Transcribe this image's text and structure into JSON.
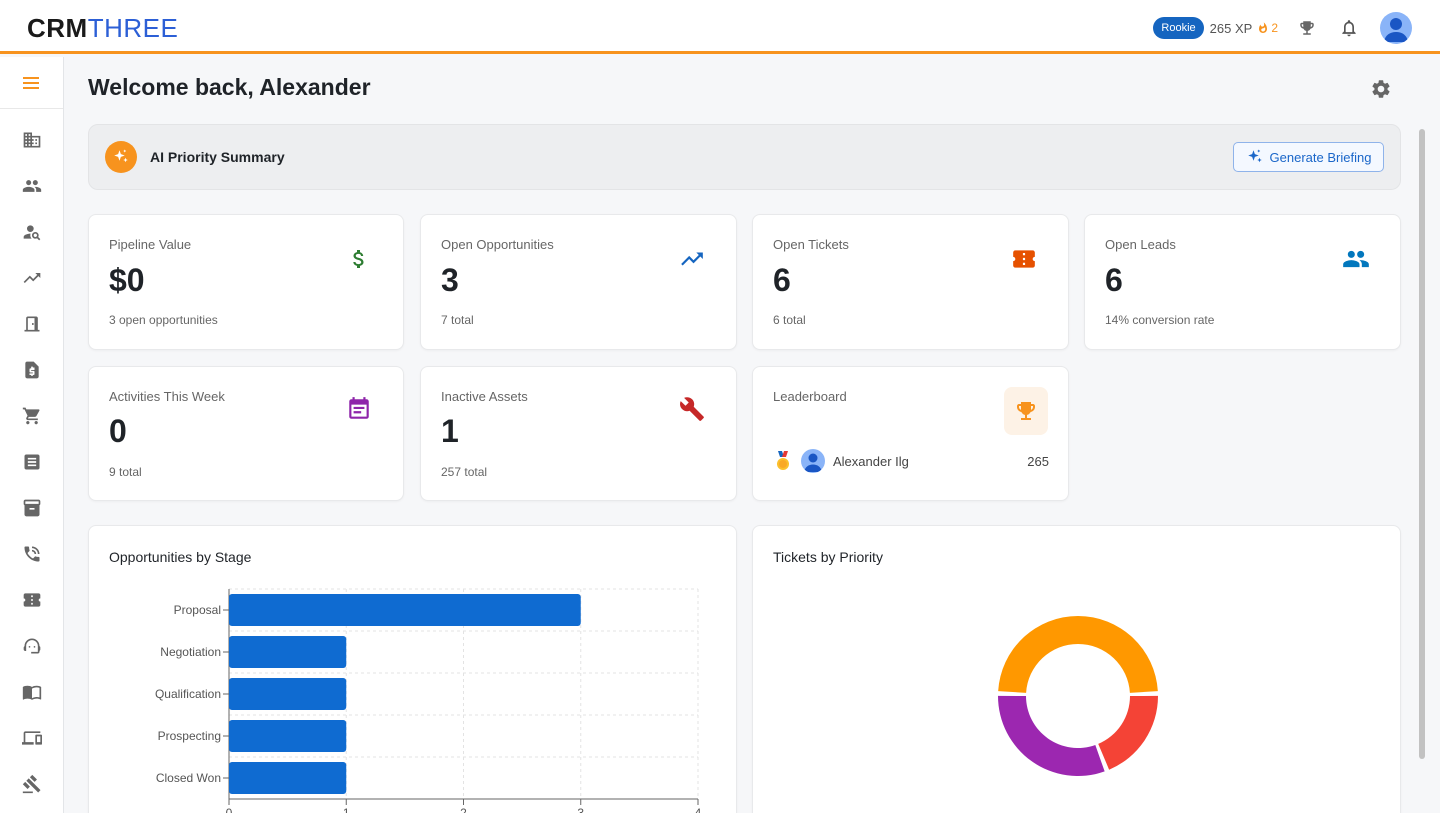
{
  "app": {
    "logo_primary": "CRM",
    "logo_secondary": "THREE",
    "rookie_badge": "Rookie",
    "xp": "265 XP",
    "streak": "2"
  },
  "sidebar": {
    "items": [
      {
        "icon": "building-icon"
      },
      {
        "icon": "people-icon"
      },
      {
        "icon": "person-search-icon"
      },
      {
        "icon": "trending-up-icon"
      },
      {
        "icon": "door-icon"
      },
      {
        "icon": "invoice-icon"
      },
      {
        "icon": "cart-icon"
      },
      {
        "icon": "list-icon"
      },
      {
        "icon": "archive-icon"
      },
      {
        "icon": "phone-icon"
      },
      {
        "icon": "ticket-icon"
      },
      {
        "icon": "support-agent-icon"
      },
      {
        "icon": "book-icon"
      },
      {
        "icon": "devices-icon"
      },
      {
        "icon": "gavel-icon"
      }
    ]
  },
  "main": {
    "welcome": "Welcome back, Alexander",
    "ai": {
      "title": "AI Priority Summary",
      "button": "Generate Briefing"
    },
    "stats": [
      {
        "label": "Pipeline Value",
        "value": "$0",
        "sub": "3 open opportunities",
        "icon": "dollar-icon",
        "color": "#2e7d32"
      },
      {
        "label": "Open Opportunities",
        "value": "3",
        "sub": "7 total",
        "icon": "trending-up-icon",
        "color": "#1565c0"
      },
      {
        "label": "Open Tickets",
        "value": "6",
        "sub": "6 total",
        "icon": "ticket-icon",
        "color": "#e65100"
      },
      {
        "label": "Open Leads",
        "value": "6",
        "sub": "14% conversion rate",
        "icon": "people-icon",
        "color": "#0277bd"
      },
      {
        "label": "Activities This Week",
        "value": "0",
        "sub": "9 total",
        "icon": "calendar-icon",
        "color": "#8e24aa"
      },
      {
        "label": "Inactive Assets",
        "value": "1",
        "sub": "257 total",
        "icon": "wrench-icon",
        "color": "#c62828"
      }
    ],
    "leaderboard": {
      "title": "Leaderboard",
      "entries": [
        {
          "name": "Alexander Ilg",
          "score": "265"
        }
      ]
    }
  },
  "chart_data": [
    {
      "type": "bar",
      "orientation": "horizontal",
      "title": "Opportunities by Stage",
      "categories": [
        "Proposal",
        "Negotiation",
        "Qualification",
        "Prospecting",
        "Closed Won"
      ],
      "values": [
        3,
        1,
        1,
        1,
        1
      ],
      "xlim": [
        0,
        4
      ],
      "xticks": [
        "0",
        "1",
        "2",
        "3",
        "4"
      ],
      "color": "#0f6bd1",
      "grid": true
    },
    {
      "type": "pie",
      "style": "donut",
      "title": "Tickets by Priority",
      "slices": [
        {
          "value": 2.5,
          "color": "#ff9800"
        },
        {
          "value": 1.0,
          "color": "#f44336"
        },
        {
          "value": 1.6,
          "color": "#9c27b0"
        }
      ]
    }
  ]
}
